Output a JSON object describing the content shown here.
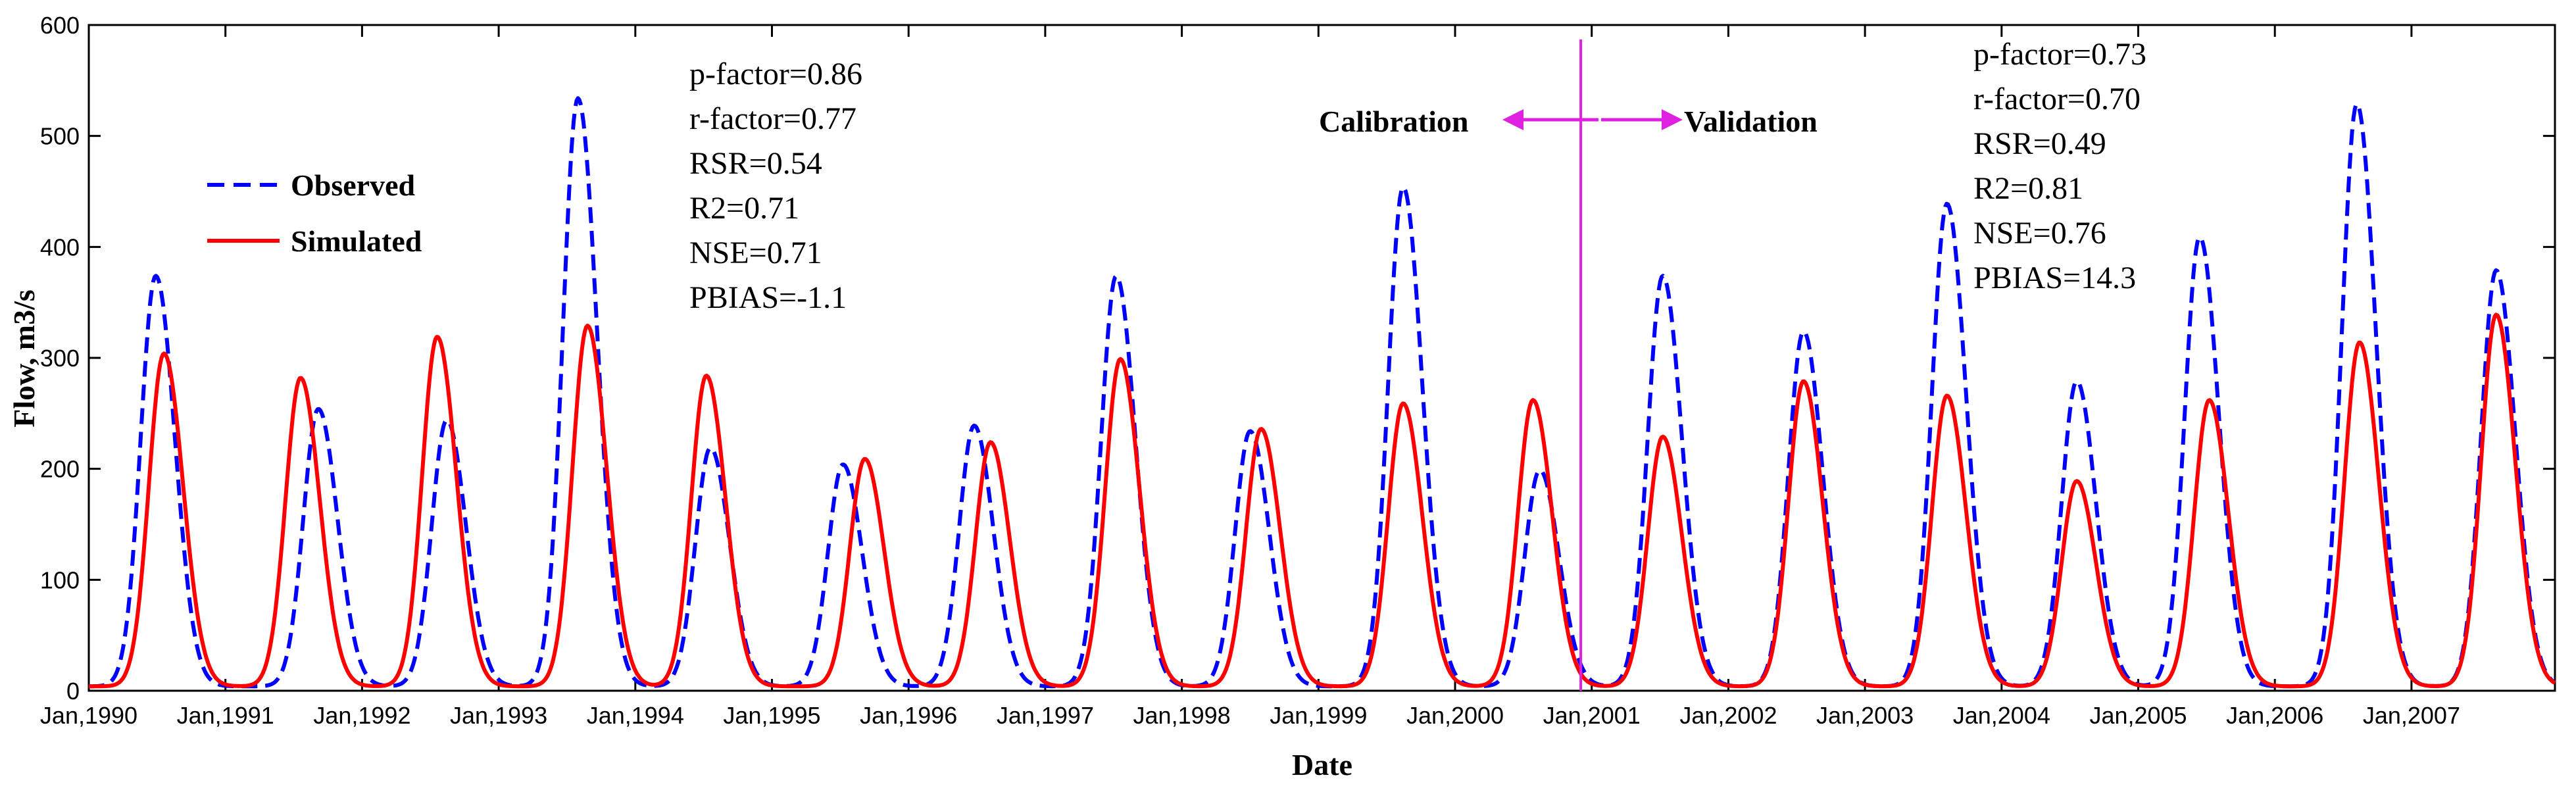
{
  "chart_data": {
    "type": "line",
    "xlabel": "Date",
    "ylabel": "Flow, m3/s",
    "ylim": [
      0,
      600
    ],
    "yticks": [
      0,
      100,
      200,
      300,
      400,
      500,
      600
    ],
    "xlim": [
      1990,
      2008.05
    ],
    "xtick_labels": [
      "Jan,1990",
      "Jan,1991",
      "Jan,1992",
      "Jan,1993",
      "Jan,1994",
      "Jan,1995",
      "Jan,1996",
      "Jan,1997",
      "Jan,1998",
      "Jan,1999",
      "Jan,2000",
      "Jan,2001",
      "Jan,2002",
      "Jan,2003",
      "Jan,2004",
      "Jan,2005",
      "Jan,2006",
      "Jan,2007"
    ],
    "legend": {
      "position": "top-left",
      "entries": [
        {
          "label": "Observed",
          "color": "#0000ff",
          "style": "dashed"
        },
        {
          "label": "Simulated",
          "color": "#ff0000",
          "style": "solid"
        }
      ]
    },
    "series": [
      {
        "name": "Observed",
        "color": "#0000ff",
        "dash": "dashed",
        "peaks": [
          [
            1990.49,
            370
          ],
          [
            1991.68,
            250
          ],
          [
            1992.62,
            240
          ],
          [
            1993.58,
            530
          ],
          [
            1994.55,
            215
          ],
          [
            1995.52,
            200
          ],
          [
            1996.48,
            235
          ],
          [
            1997.52,
            370
          ],
          [
            1998.5,
            230
          ],
          [
            1999.62,
            450
          ],
          [
            2000.62,
            195
          ],
          [
            2001.52,
            370
          ],
          [
            2002.55,
            320
          ],
          [
            2003.6,
            435
          ],
          [
            2004.55,
            275
          ],
          [
            2005.45,
            405
          ],
          [
            2006.6,
            525
          ],
          [
            2007.62,
            375
          ]
        ]
      },
      {
        "name": "Simulated",
        "color": "#ff0000",
        "dash": "solid",
        "peaks": [
          [
            1990.55,
            300
          ],
          [
            1991.55,
            278
          ],
          [
            1992.55,
            315
          ],
          [
            1993.65,
            325
          ],
          [
            1994.52,
            280
          ],
          [
            1995.68,
            205
          ],
          [
            1996.6,
            220
          ],
          [
            1997.55,
            295
          ],
          [
            1998.58,
            232
          ],
          [
            1999.62,
            255
          ],
          [
            2000.57,
            258
          ],
          [
            2001.52,
            225
          ],
          [
            2002.55,
            275
          ],
          [
            2003.6,
            262
          ],
          [
            2004.55,
            185
          ],
          [
            2005.52,
            258
          ],
          [
            2006.62,
            310
          ],
          [
            2007.62,
            335
          ]
        ]
      }
    ],
    "calibration_stats": [
      "p-factor=0.86",
      "r-factor=0.77",
      "RSR=0.54",
      "R2=0.71",
      "NSE=0.71",
      "PBIAS=-1.1"
    ],
    "validation_stats": [
      "p-factor=0.73",
      "r-factor=0.70",
      "RSR=0.49",
      "R2=0.81",
      "NSE=0.76",
      "PBIAS=14.3"
    ],
    "divider": {
      "x": 2000.92,
      "color": "#e020e0"
    },
    "period_labels": {
      "left": "Calibration",
      "right": "Validation"
    }
  }
}
